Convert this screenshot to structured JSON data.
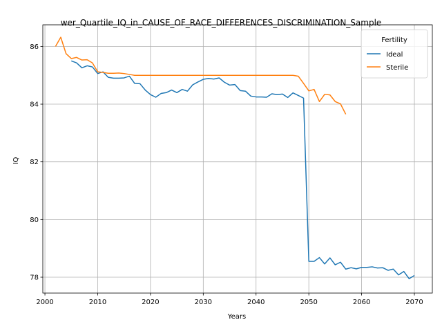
{
  "chart_data": {
    "type": "line",
    "title": "wer_Quartile_IQ_in_CAUSE_OF_RACE_DIFFERENCES_DISCRIMINATION_Sample",
    "xlabel": "Years",
    "ylabel": "IQ",
    "xlim": [
      1999.6,
      2073.4
    ],
    "ylim": [
      77.45,
      86.75
    ],
    "xticks": [
      2000,
      2010,
      2020,
      2030,
      2040,
      2050,
      2060,
      2070
    ],
    "yticks": [
      78,
      80,
      82,
      84,
      86
    ],
    "grid": true,
    "legend": {
      "title": "Fertility",
      "placement": "top-right"
    },
    "series": [
      {
        "name": "Ideal",
        "color": "#1f77b4",
        "x": [
          2005,
          2006,
          2007,
          2008,
          2009,
          2010,
          2011,
          2012,
          2013,
          2014,
          2015,
          2016,
          2017,
          2018,
          2019,
          2020,
          2021,
          2022,
          2023,
          2024,
          2025,
          2026,
          2027,
          2028,
          2029,
          2030,
          2031,
          2032,
          2033,
          2034,
          2035,
          2036,
          2037,
          2038,
          2039,
          2040,
          2041,
          2042,
          2043,
          2044,
          2045,
          2046,
          2047,
          2048,
          2049,
          2050,
          2051,
          2052,
          2053,
          2054,
          2055,
          2056,
          2057,
          2058,
          2059,
          2060,
          2061,
          2062,
          2063,
          2064,
          2065,
          2066,
          2067,
          2068,
          2069,
          2070
        ],
        "values": [
          85.5,
          85.43,
          85.26,
          85.33,
          85.29,
          85.06,
          85.12,
          84.93,
          84.9,
          84.9,
          84.91,
          84.97,
          84.72,
          84.71,
          84.49,
          84.33,
          84.24,
          84.37,
          84.4,
          84.49,
          84.4,
          84.51,
          84.45,
          84.67,
          84.77,
          84.86,
          84.89,
          84.87,
          84.91,
          84.76,
          84.66,
          84.68,
          84.47,
          84.45,
          84.28,
          84.25,
          84.25,
          84.24,
          84.36,
          84.33,
          84.35,
          84.23,
          84.39,
          84.3,
          84.21,
          78.55,
          78.55,
          78.68,
          78.46,
          78.67,
          78.43,
          78.52,
          78.28,
          78.33,
          78.29,
          78.34,
          78.34,
          78.36,
          78.32,
          78.33,
          78.24,
          78.28,
          78.08,
          78.2,
          77.95,
          78.06
        ]
      },
      {
        "name": "Sterile",
        "color": "#ff7f0e",
        "x": [
          2002,
          2003,
          2004,
          2005,
          2006,
          2007,
          2008,
          2009,
          2010,
          2011,
          2012,
          2013,
          2014,
          2015,
          2016,
          2017,
          2018,
          2019,
          2020,
          2021,
          2022,
          2023,
          2024,
          2025,
          2026,
          2027,
          2028,
          2029,
          2030,
          2031,
          2032,
          2033,
          2034,
          2035,
          2036,
          2037,
          2038,
          2039,
          2040,
          2041,
          2042,
          2043,
          2044,
          2045,
          2046,
          2047,
          2048,
          2049,
          2050,
          2051,
          2052,
          2053,
          2054,
          2055,
          2056,
          2057
        ],
        "values": [
          86.0,
          86.32,
          85.75,
          85.58,
          85.62,
          85.53,
          85.54,
          85.43,
          85.12,
          85.1,
          85.07,
          85.07,
          85.08,
          85.06,
          85.03,
          85.0,
          85.0,
          85.0,
          85.0,
          85.0,
          85.0,
          85.0,
          85.0,
          85.0,
          85.0,
          85.0,
          85.0,
          85.0,
          85.0,
          85.0,
          85.0,
          85.0,
          85.0,
          85.0,
          85.0,
          85.0,
          85.0,
          85.0,
          85.0,
          85.0,
          85.0,
          85.0,
          85.0,
          85.0,
          85.0,
          85.0,
          84.97,
          84.72,
          84.46,
          84.51,
          84.09,
          84.34,
          84.32,
          84.09,
          84.01,
          83.65
        ]
      }
    ]
  }
}
